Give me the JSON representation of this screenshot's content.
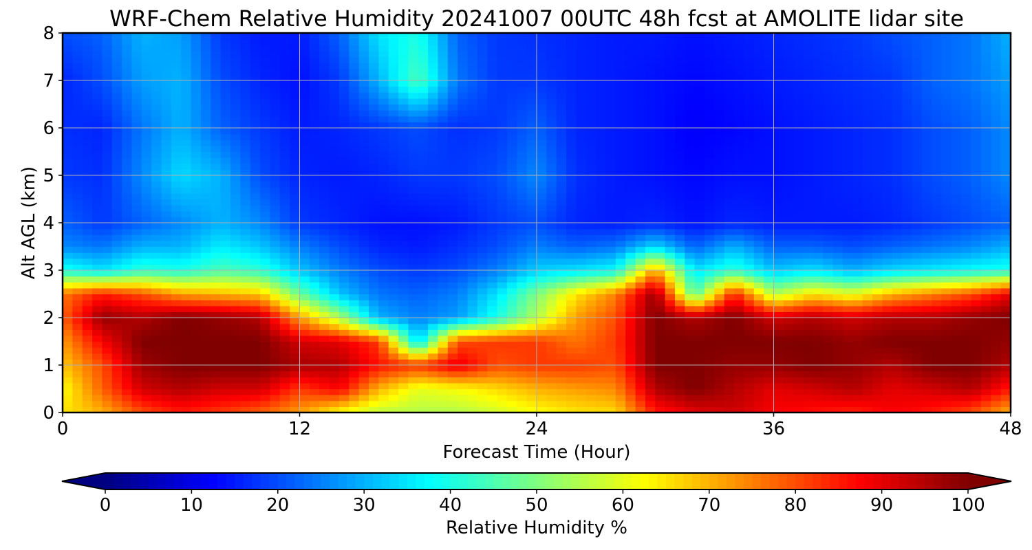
{
  "chart_data": {
    "type": "heatmap",
    "title": "WRF-Chem Relative Humidity 20241007 00UTC 48h fcst at AMOLITE lidar site",
    "xlabel": "Forecast Time (Hour)",
    "ylabel": "Alt AGL (km)",
    "xlim": [
      0,
      48
    ],
    "ylim": [
      0,
      8
    ],
    "xticks": [
      0,
      12,
      24,
      36,
      48
    ],
    "yticks": [
      0,
      1,
      2,
      3,
      4,
      5,
      6,
      7,
      8
    ],
    "grid": true,
    "colormap": "jet",
    "colorbar": {
      "label": "Relative Humidity %",
      "min": 0,
      "max": 100,
      "ticks": [
        0,
        10,
        20,
        30,
        40,
        50,
        60,
        70,
        80,
        90,
        100
      ],
      "extend": "both",
      "orientation": "horizontal",
      "placement": "bottom"
    },
    "x": [
      0,
      2,
      4,
      6,
      8,
      10,
      12,
      14,
      16,
      18,
      20,
      22,
      24,
      26,
      28,
      30,
      32,
      34,
      36,
      38,
      40,
      42,
      44,
      46,
      48
    ],
    "y": [
      0,
      0.5,
      1,
      1.5,
      2,
      2.5,
      3,
      3.5,
      4,
      5,
      6,
      7,
      8
    ],
    "z": [
      [
        65,
        70,
        80,
        85,
        82,
        78,
        72,
        62,
        56,
        55,
        55,
        58,
        62,
        65,
        66,
        85,
        90,
        92,
        88,
        86,
        84,
        88,
        85,
        80,
        70
      ],
      [
        62,
        78,
        92,
        95,
        92,
        92,
        82,
        88,
        70,
        60,
        62,
        66,
        70,
        72,
        74,
        95,
        100,
        95,
        90,
        92,
        95,
        90,
        92,
        95,
        85
      ],
      [
        68,
        80,
        97,
        100,
        100,
        100,
        96,
        95,
        86,
        82,
        90,
        80,
        82,
        82,
        80,
        100,
        100,
        98,
        98,
        100,
        98,
        95,
        100,
        100,
        95
      ],
      [
        72,
        88,
        100,
        100,
        100,
        100,
        92,
        90,
        82,
        33,
        80,
        82,
        82,
        76,
        82,
        100,
        100,
        100,
        100,
        100,
        98,
        100,
        100,
        100,
        98
      ],
      [
        78,
        98,
        95,
        100,
        98,
        95,
        72,
        55,
        30,
        25,
        28,
        40,
        55,
        72,
        80,
        100,
        95,
        100,
        92,
        95,
        92,
        95,
        95,
        98,
        100
      ],
      [
        76,
        85,
        80,
        72,
        70,
        68,
        48,
        32,
        24,
        22,
        25,
        35,
        50,
        65,
        75,
        98,
        45,
        85,
        55,
        65,
        60,
        70,
        75,
        80,
        90
      ],
      [
        40,
        35,
        42,
        40,
        45,
        42,
        32,
        25,
        20,
        18,
        20,
        25,
        33,
        35,
        38,
        72,
        35,
        42,
        32,
        35,
        30,
        34,
        36,
        38,
        40
      ],
      [
        26,
        24,
        30,
        30,
        36,
        32,
        25,
        20,
        16,
        15,
        17,
        20,
        25,
        22,
        24,
        34,
        22,
        30,
        22,
        22,
        20,
        22,
        24,
        26,
        30
      ],
      [
        22,
        18,
        22,
        26,
        30,
        26,
        18,
        16,
        14,
        14,
        15,
        18,
        20,
        16,
        15,
        16,
        14,
        16,
        15,
        15,
        15,
        16,
        18,
        20,
        22
      ],
      [
        18,
        17,
        26,
        34,
        30,
        20,
        16,
        15,
        16,
        18,
        18,
        20,
        26,
        17,
        15,
        14,
        13,
        14,
        14,
        15,
        16,
        17,
        20,
        22,
        26
      ],
      [
        17,
        16,
        24,
        30,
        22,
        18,
        15,
        16,
        18,
        20,
        17,
        18,
        22,
        16,
        15,
        14,
        12,
        13,
        14,
        15,
        16,
        17,
        20,
        22,
        26
      ],
      [
        16,
        20,
        28,
        30,
        20,
        16,
        14,
        18,
        30,
        45,
        24,
        18,
        18,
        16,
        15,
        14,
        13,
        14,
        15,
        16,
        17,
        18,
        22,
        24,
        28
      ],
      [
        20,
        22,
        30,
        28,
        18,
        15,
        15,
        22,
        35,
        40,
        22,
        18,
        17,
        16,
        15,
        15,
        14,
        15,
        16,
        17,
        18,
        20,
        22,
        24,
        30
      ]
    ]
  }
}
